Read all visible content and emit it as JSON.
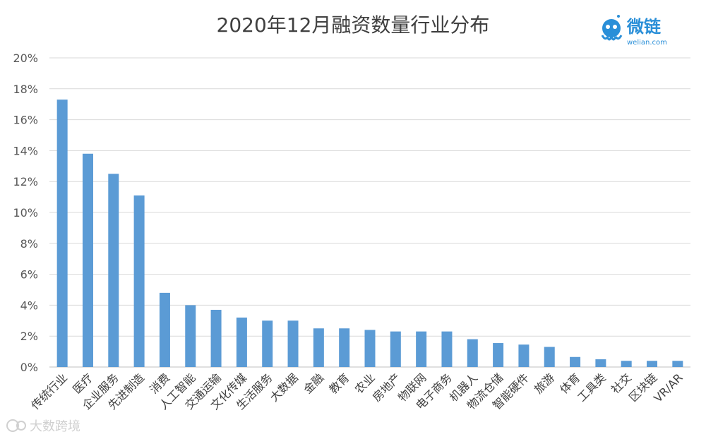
{
  "chart_data": {
    "type": "bar",
    "title": "2020年12月融资数量行业分布",
    "categories": [
      "传统行业",
      "医疗",
      "企业服务",
      "先进制造",
      "消费",
      "人工智能",
      "交通运输",
      "文化传媒",
      "生活服务",
      "大数据",
      "金融",
      "教育",
      "农业",
      "房地产",
      "物联网",
      "电子商务",
      "机器人",
      "物流仓储",
      "智能硬件",
      "旅游",
      "体育",
      "工具类",
      "社交",
      "区块链",
      "VR/AR"
    ],
    "values": [
      17.3,
      13.8,
      12.5,
      11.1,
      4.8,
      4.0,
      3.7,
      3.2,
      3.0,
      3.0,
      2.5,
      2.5,
      2.4,
      2.3,
      2.3,
      2.3,
      1.8,
      1.55,
      1.45,
      1.3,
      0.65,
      0.5,
      0.4,
      0.4,
      0.4
    ],
    "ylim": [
      0,
      20
    ],
    "yticks": [
      "0%",
      "2%",
      "4%",
      "6%",
      "8%",
      "10%",
      "12%",
      "14%",
      "16%",
      "18%",
      "20%"
    ],
    "xlabel": "",
    "ylabel": "",
    "grid": true,
    "bar_color": "#5b9bd5"
  },
  "logo": {
    "name": "微链",
    "sub": "welian.com",
    "color": "#2a8fd8"
  },
  "watermark": {
    "text": "大数跨境"
  }
}
